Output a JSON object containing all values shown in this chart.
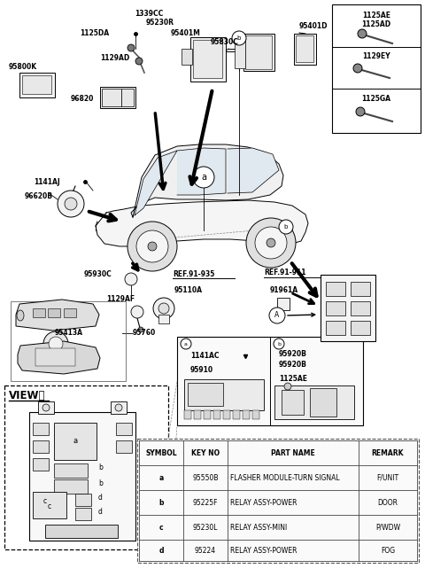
{
  "bg_color": "#ffffff",
  "fig_width": 4.8,
  "fig_height": 6.59,
  "dpi": 100,
  "table_headers": [
    "SYMBOL",
    "KEY NO",
    "PART NAME",
    "REMARK"
  ],
  "table_rows": [
    [
      "a",
      "95550B",
      "FLASHER MODULE-TURN SIGNAL",
      "F/UNIT"
    ],
    [
      "b",
      "95225F",
      "RELAY ASSY-POWER",
      "DOOR"
    ],
    [
      "c",
      "95230L",
      "RELAY ASSY-MINI",
      "P/WDW"
    ],
    [
      "d",
      "95224",
      "RELAY ASSY-POWER",
      "FOG"
    ]
  ]
}
